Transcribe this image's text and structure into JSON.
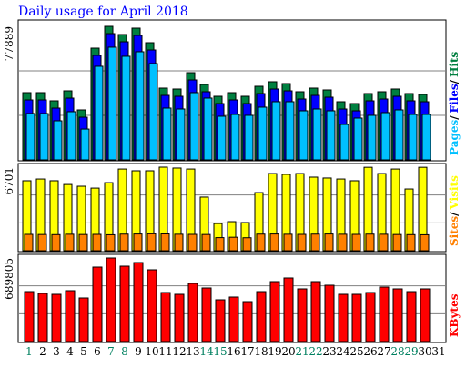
{
  "chart_data": {
    "type": "bar",
    "title": "Daily usage for April 2018",
    "categories": [
      "1",
      "2",
      "3",
      "4",
      "5",
      "6",
      "7",
      "8",
      "9",
      "10",
      "11",
      "12",
      "13",
      "14",
      "15",
      "16",
      "17",
      "18",
      "19",
      "20",
      "21",
      "22",
      "23",
      "24",
      "25",
      "26",
      "27",
      "28",
      "29",
      "30",
      "31"
    ],
    "category_colors": [
      "#008060",
      "#000000",
      "#000000",
      "#000000",
      "#000000",
      "#000000",
      "#008060",
      "#008060",
      "#000000",
      "#000000",
      "#000000",
      "#000000",
      "#000000",
      "#008060",
      "#008060",
      "#000000",
      "#000000",
      "#000000",
      "#000000",
      "#000000",
      "#008060",
      "#008060",
      "#000000",
      "#000000",
      "#000000",
      "#000000",
      "#000000",
      "#008060",
      "#008060",
      "#000000",
      "#000000"
    ],
    "legend_separator": "/",
    "panels": [
      {
        "ylim": [
          0,
          77889
        ],
        "yticks": [
          77889
        ],
        "series": [
          {
            "name": "Hits",
            "color": "#008040",
            "values": [
              39210,
              39210,
              34440,
              40270,
              29140,
              65170,
              77889,
              73120,
              76830,
              68350,
              41860,
              41330,
              50870,
              43980,
              37090,
              39210,
              37090,
              42920,
              45570,
              44510,
              39740,
              41860,
              40800,
              33910,
              32850,
              38680,
              39740,
              41330,
              38680,
              38150,
              null
            ]
          },
          {
            "name": "Files",
            "color": "#0000ff",
            "values": [
              34970,
              34970,
              30200,
              36030,
              24900,
              60930,
              73650,
              68880,
              72590,
              64110,
              37620,
              37090,
              46630,
              39740,
              32850,
              34970,
              32850,
              38680,
              41330,
              40270,
              35500,
              37620,
              36560,
              29670,
              28610,
              34440,
              35500,
              37090,
              34440,
              33910,
              null
            ]
          },
          {
            "name": "Pages",
            "color": "#00c0ff",
            "values": [
              27030,
              27030,
              22790,
              28090,
              17980,
              54590,
              65720,
              60420,
              63070,
              56180,
              30210,
              29680,
              39220,
              36040,
              25440,
              26500,
              25970,
              30740,
              33920,
              33920,
              28620,
              29680,
              28620,
              20670,
              24380,
              25970,
              27560,
              29150,
              26500,
              26500,
              null
            ]
          }
        ]
      },
      {
        "ylim": [
          0,
          6701
        ],
        "yticks": [
          6701
        ],
        "series": [
          {
            "name": "Visits",
            "color": "#ffff00",
            "values": [
              5610,
              5750,
              5610,
              5310,
              5170,
              5020,
              5460,
              6550,
              6410,
              6410,
              6701,
              6630,
              6550,
              4300,
              2180,
              2330,
              2260,
              4660,
              6190,
              6120,
              6190,
              5900,
              5830,
              5750,
              5610,
              6690,
              6190,
              6550,
              4950,
              6690,
              null
            ]
          },
          {
            "name": "Sites",
            "color": "#ff8000",
            "values": [
              1310,
              1300,
              1290,
              1320,
              1300,
              1310,
              1280,
              1330,
              1340,
              1360,
              1350,
              1320,
              1310,
              1300,
              1050,
              1080,
              1040,
              1330,
              1340,
              1320,
              1310,
              1330,
              1340,
              1320,
              1310,
              1330,
              1320,
              1300,
              1290,
              1280,
              null
            ]
          }
        ]
      },
      {
        "ylim": [
          0,
          689805
        ],
        "yticks": [
          689805
        ],
        "series": [
          {
            "name": "KBytes",
            "color": "#ff0000",
            "values": [
              412400,
              397400,
              389900,
              419900,
              359900,
              614800,
              689805,
              622300,
              652300,
              592300,
              404900,
              389900,
              479900,
              442400,
              344900,
              367400,
              329900,
              412400,
              494900,
              524900,
              434900,
              494900,
              464900,
              389900,
              389900,
              404900,
              449900,
              434900,
              412400,
              434900,
              null
            ]
          }
        ]
      }
    ]
  }
}
